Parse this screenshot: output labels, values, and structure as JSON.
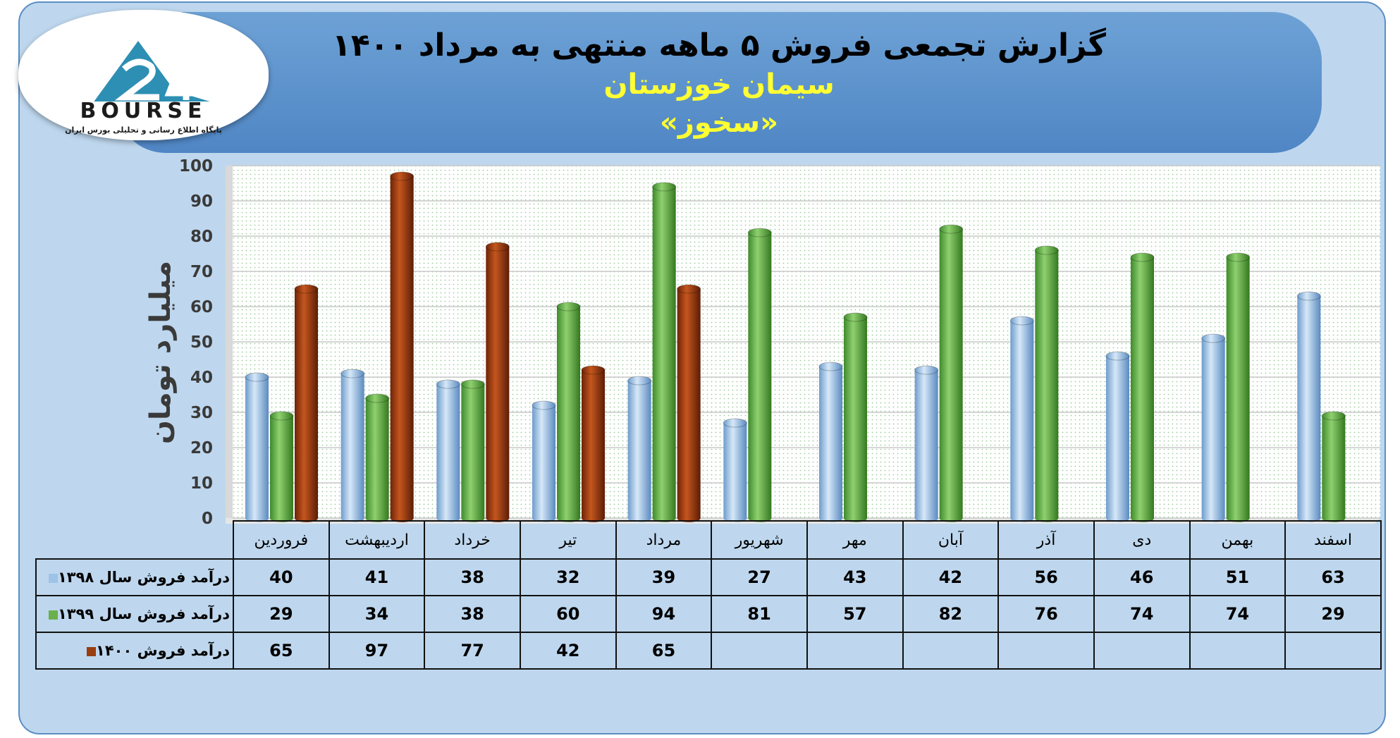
{
  "header": {
    "title": "گزارش تجمعی فروش ۵ ماهه منتهی به مرداد ۱۴۰۰",
    "company": "سیمان خوزستان",
    "symbol": "«سخوز»"
  },
  "logo": {
    "word": "BOURSE",
    "tagline": "پایگاه اطلاع رسانی و تحلیلی بورس ایران",
    "icon": "triangle-24-logo-icon"
  },
  "colors": {
    "series_1398": "#9dc3e6",
    "series_1399": "#6ab04c",
    "series_1400": "#9a3d12"
  },
  "chart_data": {
    "type": "bar",
    "title": "گزارش تجمعی فروش ۵ ماهه منتهی به مرداد ۱۴۰۰",
    "ylabel": "میلیارد تومان",
    "xlabel": "",
    "ylim": [
      0,
      100
    ],
    "yticks": [
      0,
      10,
      20,
      30,
      40,
      50,
      60,
      70,
      80,
      90,
      100
    ],
    "grid": true,
    "legend": "data-table-left",
    "categories": [
      "فروردین",
      "اردیبهشت",
      "خرداد",
      "تیر",
      "مرداد",
      "شهریور",
      "مهر",
      "آبان",
      "آذر",
      "دی",
      "بهمن",
      "اسفند"
    ],
    "series": [
      {
        "name": "درآمد فروش سال ۱۳۹۸",
        "values": [
          40,
          41,
          38,
          32,
          39,
          27,
          43,
          42,
          56,
          46,
          51,
          63
        ]
      },
      {
        "name": "درآمد فروش سال ۱۳۹۹",
        "values": [
          29,
          34,
          38,
          60,
          94,
          81,
          57,
          82,
          76,
          74,
          74,
          29
        ]
      },
      {
        "name": "درآمد فروش ۱۴۰۰",
        "values": [
          65,
          97,
          77,
          42,
          65,
          null,
          null,
          null,
          null,
          null,
          null,
          null
        ]
      }
    ]
  }
}
